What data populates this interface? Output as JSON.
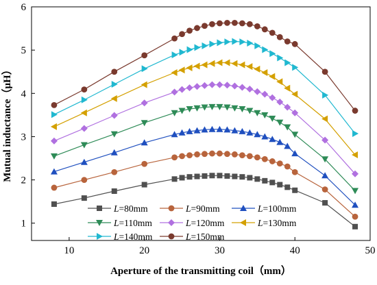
{
  "chart_data": {
    "type": "line",
    "xlabel": "Aperture of the transmitting coil（mm）",
    "ylabel": "Mutual inductance（μH）",
    "xlim": [
      5,
      50
    ],
    "ylim": [
      0.6,
      6.0
    ],
    "xticks": [
      10,
      20,
      30,
      40,
      50
    ],
    "yticks": [
      1,
      2,
      3,
      4,
      5,
      6
    ],
    "grid": false,
    "legend_position": "bottom-left, inside plot",
    "x": [
      8,
      12,
      16,
      20,
      24,
      25,
      26,
      27,
      28,
      29,
      30,
      31,
      32,
      33,
      34,
      35,
      36,
      37,
      38,
      39,
      40,
      44,
      48
    ],
    "series": [
      {
        "name": "L=80mm",
        "legend_prefix": "L",
        "legend_suffix": "=80mm",
        "color": "#505050",
        "marker": "square",
        "values": [
          1.44,
          1.58,
          1.74,
          1.89,
          2.02,
          2.05,
          2.07,
          2.08,
          2.09,
          2.1,
          2.1,
          2.09,
          2.08,
          2.07,
          2.05,
          2.02,
          1.98,
          1.94,
          1.89,
          1.83,
          1.76,
          1.47,
          0.92
        ]
      },
      {
        "name": "L=90mm",
        "legend_prefix": "L",
        "legend_suffix": "=90mm",
        "color": "#b8643c",
        "marker": "circle",
        "values": [
          1.82,
          2.0,
          2.18,
          2.37,
          2.52,
          2.55,
          2.57,
          2.59,
          2.6,
          2.61,
          2.61,
          2.6,
          2.59,
          2.57,
          2.55,
          2.52,
          2.48,
          2.43,
          2.38,
          2.31,
          2.18,
          1.78,
          1.15
        ]
      },
      {
        "name": "L=100mm",
        "legend_prefix": "L",
        "legend_suffix": "=100mm",
        "color": "#1f4fbf",
        "marker": "triangle-up",
        "values": [
          2.19,
          2.41,
          2.63,
          2.86,
          3.05,
          3.09,
          3.12,
          3.14,
          3.16,
          3.17,
          3.17,
          3.16,
          3.14,
          3.12,
          3.09,
          3.05,
          3.0,
          2.94,
          2.87,
          2.78,
          2.61,
          2.1,
          1.42
        ]
      },
      {
        "name": "L=110mm",
        "legend_prefix": "L",
        "legend_suffix": "=110mm",
        "color": "#2e8b57",
        "marker": "triangle-down",
        "values": [
          2.55,
          2.81,
          3.06,
          3.32,
          3.55,
          3.6,
          3.64,
          3.66,
          3.68,
          3.69,
          3.69,
          3.68,
          3.66,
          3.64,
          3.6,
          3.55,
          3.5,
          3.42,
          3.33,
          3.22,
          3.05,
          2.48,
          1.75
        ]
      },
      {
        "name": "L=120mm",
        "legend_prefix": "L",
        "legend_suffix": "=120mm",
        "color": "#b070e0",
        "marker": "diamond",
        "values": [
          2.9,
          3.19,
          3.49,
          3.78,
          4.03,
          4.09,
          4.13,
          4.16,
          4.18,
          4.2,
          4.2,
          4.19,
          4.17,
          4.14,
          4.1,
          4.04,
          3.98,
          3.9,
          3.8,
          3.68,
          3.55,
          2.92,
          2.14
        ]
      },
      {
        "name": "L=130mm",
        "legend_prefix": "L",
        "legend_suffix": "=130mm",
        "color": "#d4a000",
        "marker": "triangle-left",
        "values": [
          3.23,
          3.55,
          3.88,
          4.2,
          4.48,
          4.54,
          4.59,
          4.63,
          4.66,
          4.69,
          4.71,
          4.71,
          4.69,
          4.66,
          4.62,
          4.56,
          4.48,
          4.39,
          4.27,
          4.12,
          3.98,
          3.41,
          2.58
        ]
      },
      {
        "name": "L=140mm",
        "legend_prefix": "L",
        "legend_suffix": "=140mm",
        "color": "#20b8d0",
        "marker": "triangle-right",
        "values": [
          3.51,
          3.85,
          4.21,
          4.57,
          4.89,
          4.95,
          5.01,
          5.06,
          5.1,
          5.14,
          5.17,
          5.19,
          5.2,
          5.19,
          5.16,
          5.1,
          5.01,
          4.92,
          4.82,
          4.71,
          4.6,
          3.96,
          3.07
        ]
      },
      {
        "name": "L=150mm",
        "legend_prefix": "L",
        "legend_suffix": "=150mm",
        "color": "#7a3a2e",
        "marker": "circle",
        "values": [
          3.73,
          4.09,
          4.5,
          4.88,
          5.27,
          5.37,
          5.45,
          5.51,
          5.56,
          5.6,
          5.62,
          5.63,
          5.63,
          5.62,
          5.6,
          5.55,
          5.48,
          5.4,
          5.3,
          5.2,
          5.14,
          4.5,
          3.6
        ]
      }
    ]
  }
}
